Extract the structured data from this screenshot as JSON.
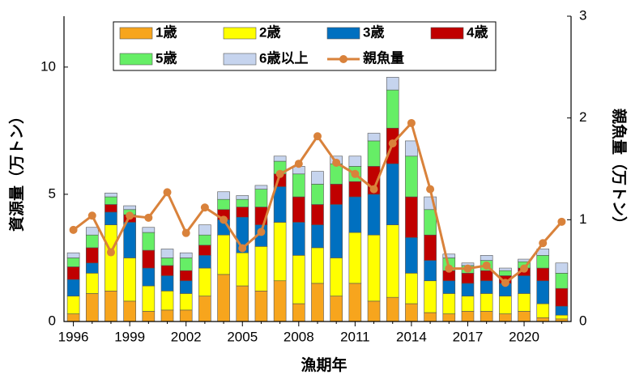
{
  "chart_data": {
    "type": "bar",
    "stacked": true,
    "x_label": "漁期年",
    "y_label": "資源量（万トン）",
    "y2_label": "親魚量（万トン）",
    "categories": [
      "1996",
      null,
      null,
      "1999",
      null,
      null,
      "2002",
      null,
      null,
      "2005",
      null,
      null,
      "2008",
      null,
      null,
      "2011",
      null,
      null,
      "2014",
      null,
      null,
      "2017",
      null,
      null,
      "2020",
      null,
      null
    ],
    "series": [
      {
        "name": "1歳",
        "color": "#f7a51d",
        "values": [
          0.3,
          1.1,
          1.2,
          0.8,
          0.4,
          0.45,
          0.45,
          1.0,
          1.85,
          1.4,
          1.2,
          1.6,
          0.7,
          1.5,
          1.0,
          1.5,
          0.8,
          0.95,
          0.7,
          0.35,
          0.3,
          0.4,
          0.4,
          0.3,
          0.4,
          0.15,
          0.1
        ]
      },
      {
        "name": "2歳",
        "color": "#ffff00",
        "values": [
          0.7,
          0.8,
          2.6,
          1.7,
          1.0,
          0.75,
          0.65,
          1.1,
          1.55,
          1.3,
          1.75,
          2.3,
          1.9,
          1.4,
          1.5,
          2.0,
          2.6,
          2.85,
          1.2,
          1.25,
          0.8,
          0.6,
          0.7,
          0.7,
          0.7,
          0.55,
          0.15
        ]
      },
      {
        "name": "3歳",
        "color": "#0070c0",
        "values": [
          0.65,
          0.4,
          0.5,
          1.4,
          0.7,
          0.6,
          0.5,
          0.5,
          0.6,
          1.4,
          0.85,
          1.4,
          1.3,
          0.9,
          2.1,
          1.4,
          1.6,
          2.4,
          1.4,
          0.8,
          0.5,
          0.5,
          0.5,
          0.5,
          0.7,
          0.9,
          0.35
        ]
      },
      {
        "name": "4歳",
        "color": "#c00000",
        "values": [
          0.5,
          0.6,
          0.3,
          0.3,
          0.7,
          0.4,
          0.4,
          0.4,
          0.4,
          0.4,
          0.7,
          0.5,
          1.0,
          0.8,
          0.8,
          0.6,
          1.1,
          1.4,
          1.6,
          1.0,
          0.4,
          0.4,
          0.4,
          0.3,
          0.3,
          0.5,
          0.7
        ]
      },
      {
        "name": "5歳",
        "color": "#66ee66",
        "values": [
          0.35,
          0.5,
          0.3,
          0.2,
          0.7,
          0.3,
          0.5,
          0.4,
          0.4,
          0.3,
          0.7,
          0.5,
          0.9,
          0.8,
          0.8,
          0.6,
          1.0,
          1.5,
          1.6,
          1.0,
          0.5,
          0.3,
          0.4,
          0.2,
          0.25,
          0.5,
          0.6
        ]
      },
      {
        "name": "6歳以上",
        "color": "#c6d4ee",
        "values": [
          0.2,
          0.3,
          0.15,
          0.15,
          0.2,
          0.35,
          0.2,
          0.4,
          0.3,
          0.15,
          0.15,
          0.2,
          0.3,
          0.5,
          0.3,
          0.4,
          0.3,
          0.5,
          0.6,
          0.5,
          0.15,
          0.1,
          0.2,
          0.1,
          0.1,
          0.25,
          0.4
        ]
      },
      {
        "name": "親魚量",
        "type": "line",
        "axis": "y2",
        "color": "#d9823b",
        "values": [
          0.9,
          1.04,
          0.68,
          1.04,
          1.02,
          1.27,
          0.87,
          1.12,
          1.0,
          0.72,
          0.88,
          1.45,
          1.55,
          1.82,
          1.56,
          1.45,
          1.3,
          1.75,
          1.95,
          1.3,
          0.52,
          0.52,
          0.55,
          0.38,
          0.52,
          0.77,
          0.98
        ]
      }
    ],
    "ylim": [
      0,
      12
    ],
    "yticks": [
      0,
      5,
      10
    ],
    "y2lim": [
      0,
      3
    ],
    "y2ticks": [
      0,
      1,
      2,
      3
    ]
  }
}
